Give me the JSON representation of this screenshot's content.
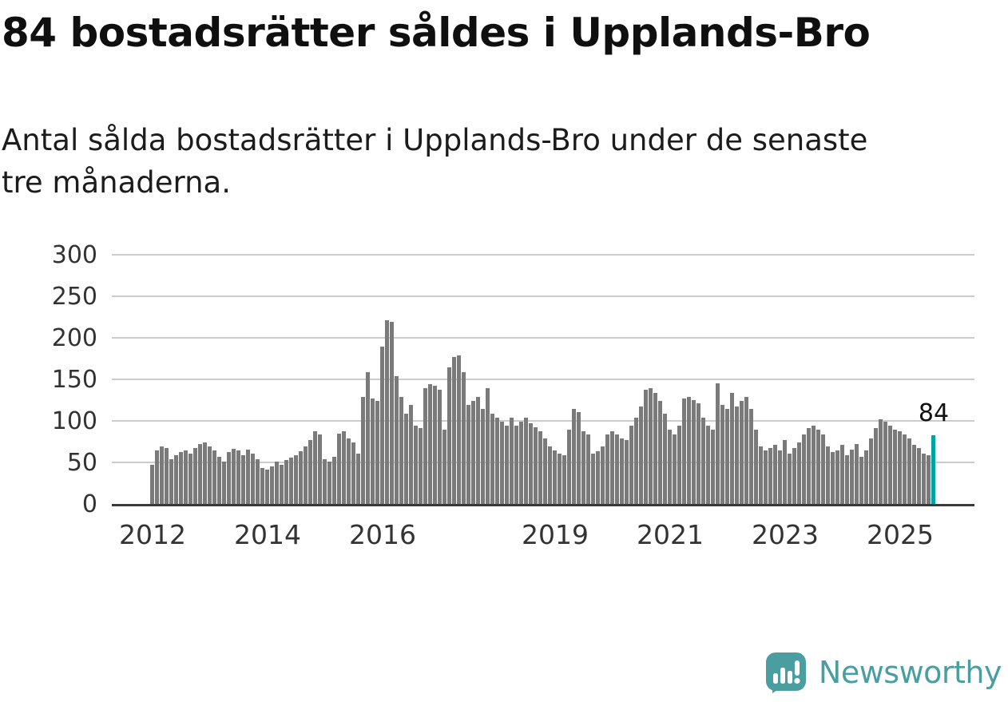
{
  "title": "84 bostadsrätter såldes i Upplands-Bro",
  "subtitle": "Antal sålda bostadsrätter i Upplands-Bro under de senaste\ntre månaderna.",
  "brand": {
    "name": "Newsworthy",
    "color": "#4A9EA0",
    "icon": "newsworthy-logo-icon"
  },
  "colors": {
    "bar": "#7A7A7A",
    "highlight": "#00A3A3",
    "axis": "#3A3A3A",
    "grid": "#CCCCCC",
    "text": "#111111",
    "tick_text": "#333333"
  },
  "chart_data": {
    "type": "bar",
    "title": "84 bostadsrätter såldes i Upplands-Bro",
    "xlabel": "",
    "ylabel": "",
    "ylim": [
      0,
      300
    ],
    "yticks": [
      0,
      50,
      100,
      150,
      200,
      250,
      300
    ],
    "grid": true,
    "x_start": "2012-01",
    "x_end": "2025-08",
    "x_ticks": [
      {
        "label": "2012",
        "month_index": 0
      },
      {
        "label": "2014",
        "month_index": 24
      },
      {
        "label": "2016",
        "month_index": 48
      },
      {
        "label": "2019",
        "month_index": 84
      },
      {
        "label": "2021",
        "month_index": 108
      },
      {
        "label": "2023",
        "month_index": 132
      },
      {
        "label": "2025",
        "month_index": 156
      }
    ],
    "values": [
      48,
      65,
      70,
      68,
      55,
      60,
      63,
      65,
      62,
      68,
      73,
      75,
      70,
      65,
      58,
      52,
      63,
      67,
      65,
      60,
      66,
      62,
      55,
      44,
      42,
      46,
      52,
      48,
      54,
      57,
      60,
      64,
      70,
      78,
      88,
      85,
      55,
      52,
      58,
      86,
      88,
      80,
      75,
      62,
      130,
      160,
      128,
      125,
      190,
      222,
      220,
      155,
      130,
      110,
      120,
      95,
      92,
      140,
      145,
      143,
      138,
      90,
      165,
      178,
      180,
      160,
      120,
      125,
      130,
      115,
      140,
      110,
      105,
      100,
      95,
      105,
      95,
      100,
      105,
      98,
      93,
      88,
      80,
      70,
      65,
      62,
      60,
      90,
      115,
      112,
      88,
      85,
      62,
      64,
      70,
      85,
      88,
      85,
      80,
      78,
      95,
      105,
      118,
      138,
      140,
      135,
      125,
      110,
      90,
      85,
      95,
      128,
      130,
      126,
      122,
      105,
      95,
      90,
      146,
      120,
      115,
      135,
      118,
      125,
      130,
      115,
      90,
      70,
      65,
      68,
      72,
      65,
      78,
      62,
      68,
      75,
      85,
      92,
      95,
      90,
      85,
      70,
      63,
      65,
      72,
      60,
      66,
      73,
      58,
      65,
      80,
      92,
      103,
      100,
      95,
      90,
      88,
      85,
      80,
      72,
      68,
      62,
      60,
      84
    ],
    "highlight_last": true,
    "last_value_label": "84",
    "legend": false
  }
}
